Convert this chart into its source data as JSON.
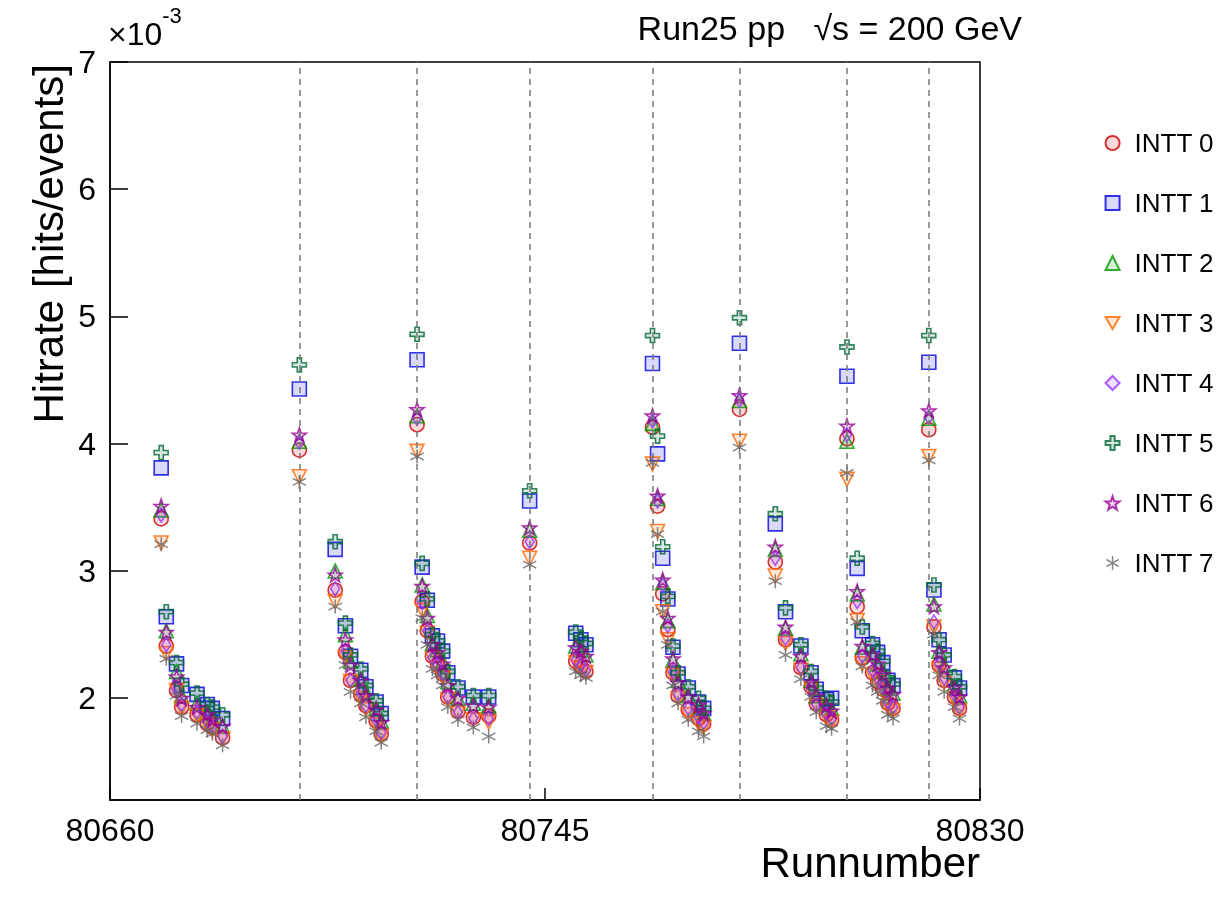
{
  "chart_data": {
    "type": "scatter",
    "title": "Run25 pp   √s = 200 GeV",
    "xlabel": "Runnumber",
    "ylabel": "Hitrate [hits/events]",
    "annotations": [
      "×10$^{-3}$"
    ],
    "x": [
      80670,
      80671,
      80673,
      80674,
      80677,
      80679,
      80680,
      80682,
      80697,
      80704,
      80706,
      80707,
      80709,
      80710,
      80712,
      80713,
      80720,
      80721,
      80722,
      80723,
      80724,
      80725,
      80726,
      80728,
      80731,
      80734,
      80742,
      80751,
      80752,
      80753,
      80766,
      80767,
      80768,
      80769,
      80770,
      80771,
      80773,
      80775,
      80776,
      80783,
      80790,
      80792,
      80795,
      80797,
      80798,
      80800,
      80801,
      80804,
      80806,
      80807,
      80809,
      80810,
      80811,
      80812,
      80813,
      80820,
      80821,
      80822,
      80823,
      80825,
      80826
    ],
    "series": [
      {
        "name": "INTT 0",
        "color": "#cc0000",
        "marker": "circle",
        "values": [
          3.41,
          2.41,
          2.06,
          1.93,
          1.87,
          1.8,
          1.77,
          1.69,
          3.95,
          2.85,
          2.36,
          2.14,
          2.03,
          1.94,
          1.82,
          1.72,
          4.15,
          2.76,
          2.53,
          2.33,
          2.26,
          2.19,
          2.01,
          1.9,
          1.85,
          1.86,
          3.22,
          2.29,
          2.25,
          2.21,
          4.13,
          3.51,
          2.82,
          2.54,
          2.2,
          2.02,
          1.91,
          1.84,
          1.8,
          4.27,
          3.07,
          2.46,
          2.24,
          2.09,
          1.96,
          1.87,
          1.83,
          4.04,
          2.72,
          2.32,
          2.2,
          2.13,
          2.07,
          1.96,
          1.92,
          4.11,
          2.56,
          2.26,
          2.14,
          2.01,
          1.92
        ]
      },
      {
        "name": "INTT 1",
        "color": "#0000dd",
        "marker": "square",
        "values": [
          3.81,
          2.64,
          2.27,
          2.1,
          2.03,
          1.95,
          1.92,
          1.84,
          4.43,
          3.17,
          2.57,
          2.33,
          2.22,
          2.09,
          1.97,
          1.88,
          4.66,
          3.03,
          2.77,
          2.49,
          2.45,
          2.37,
          2.2,
          2.08,
          2.01,
          2.01,
          3.55,
          2.51,
          2.46,
          2.42,
          4.63,
          3.92,
          3.1,
          2.78,
          2.4,
          2.19,
          2.08,
          1.97,
          1.92,
          4.79,
          3.37,
          2.68,
          2.41,
          2.2,
          2.07,
          1.99,
          2.0,
          4.53,
          3.02,
          2.53,
          2.42,
          2.36,
          2.28,
          2.14,
          2.1,
          4.64,
          2.85,
          2.46,
          2.34,
          2.16,
          2.08
        ]
      },
      {
        "name": "INTT 2",
        "color": "#009900",
        "marker": "triangle",
        "values": [
          3.48,
          2.53,
          2.21,
          2.02,
          1.96,
          1.89,
          1.85,
          1.78,
          4.02,
          3.0,
          2.5,
          2.29,
          2.15,
          2.05,
          1.92,
          1.82,
          4.22,
          2.89,
          2.65,
          2.43,
          2.38,
          2.29,
          2.13,
          2.0,
          1.96,
          1.94,
          3.32,
          2.41,
          2.38,
          2.34,
          4.16,
          3.57,
          2.91,
          2.61,
          2.3,
          2.14,
          2.02,
          1.93,
          1.88,
          4.34,
          3.17,
          2.55,
          2.35,
          2.14,
          2.02,
          1.95,
          1.92,
          4.02,
          2.82,
          2.4,
          2.35,
          2.27,
          2.21,
          2.08,
          2.04,
          4.2,
          2.74,
          2.37,
          2.26,
          2.1,
          2.02
        ]
      },
      {
        "name": "INTT 3",
        "color": "#ff6600",
        "marker": "triangle-down",
        "values": [
          3.22,
          2.35,
          2.06,
          1.92,
          1.86,
          1.79,
          1.75,
          1.68,
          3.74,
          2.76,
          2.32,
          2.13,
          2.0,
          1.91,
          1.79,
          1.7,
          3.94,
          2.69,
          2.51,
          2.31,
          2.24,
          2.16,
          1.99,
          1.88,
          1.83,
          1.81,
          3.1,
          2.28,
          2.24,
          2.2,
          3.84,
          3.31,
          2.68,
          2.46,
          2.18,
          2.0,
          1.87,
          1.8,
          1.77,
          4.02,
          2.96,
          2.43,
          2.22,
          2.07,
          1.94,
          1.85,
          1.81,
          3.72,
          2.61,
          2.27,
          2.18,
          2.13,
          2.06,
          1.94,
          1.9,
          3.9,
          2.56,
          2.23,
          2.12,
          1.99,
          1.9
        ]
      },
      {
        "name": "INTT 4",
        "color": "#9933ff",
        "marker": "diamond",
        "values": [
          3.44,
          2.42,
          2.07,
          1.95,
          1.89,
          1.82,
          1.78,
          1.7,
          4.01,
          2.86,
          2.37,
          2.14,
          2.04,
          1.94,
          1.83,
          1.73,
          4.2,
          2.75,
          2.53,
          2.32,
          2.26,
          2.19,
          2.01,
          1.89,
          1.84,
          1.84,
          3.23,
          2.3,
          2.26,
          2.22,
          4.18,
          3.55,
          2.89,
          2.57,
          2.21,
          2.03,
          1.92,
          1.85,
          1.81,
          4.34,
          3.1,
          2.47,
          2.24,
          2.09,
          1.95,
          1.88,
          1.84,
          4.07,
          2.76,
          2.33,
          2.22,
          2.16,
          2.09,
          1.97,
          1.93,
          4.21,
          2.6,
          2.27,
          2.16,
          2.03,
          1.93
        ]
      },
      {
        "name": "INTT 5",
        "color": "#006633",
        "marker": "cross",
        "values": [
          3.93,
          2.68,
          2.28,
          2.11,
          2.04,
          1.95,
          1.93,
          1.87,
          4.62,
          3.23,
          2.59,
          2.34,
          2.23,
          2.1,
          1.98,
          1.88,
          4.86,
          3.06,
          2.78,
          2.5,
          2.45,
          2.37,
          2.21,
          2.09,
          2.02,
          2.02,
          3.63,
          2.52,
          2.47,
          2.43,
          4.85,
          4.06,
          3.19,
          2.8,
          2.41,
          2.2,
          2.09,
          2.0,
          1.92,
          4.99,
          3.45,
          2.71,
          2.42,
          2.21,
          2.08,
          2.0,
          1.97,
          4.76,
          3.1,
          2.56,
          2.43,
          2.37,
          2.29,
          2.16,
          2.11,
          4.85,
          2.89,
          2.46,
          2.34,
          2.17,
          2.09
        ]
      },
      {
        "name": "INTT 6",
        "color": "#990099",
        "marker": "star",
        "values": [
          3.51,
          2.52,
          2.17,
          2.0,
          1.93,
          1.87,
          1.83,
          1.78,
          4.07,
          2.97,
          2.46,
          2.26,
          2.14,
          2.02,
          1.91,
          1.81,
          4.27,
          2.88,
          2.63,
          2.42,
          2.36,
          2.27,
          2.1,
          2.0,
          1.94,
          1.93,
          3.34,
          2.4,
          2.37,
          2.33,
          4.22,
          3.59,
          2.93,
          2.63,
          2.31,
          2.12,
          2.01,
          1.95,
          1.88,
          4.38,
          3.19,
          2.56,
          2.33,
          2.13,
          2.02,
          1.94,
          1.9,
          4.14,
          2.84,
          2.41,
          2.34,
          2.27,
          2.19,
          2.08,
          2.03,
          4.26,
          2.72,
          2.36,
          2.24,
          2.08,
          2.01
        ]
      },
      {
        "name": "INTT 7",
        "color": "#666666",
        "marker": "asterisk",
        "values": [
          3.21,
          2.31,
          2.02,
          1.86,
          1.8,
          1.75,
          1.72,
          1.63,
          3.7,
          2.72,
          2.26,
          2.05,
          1.96,
          1.85,
          1.74,
          1.65,
          3.9,
          2.63,
          2.42,
          2.23,
          2.18,
          2.1,
          1.93,
          1.83,
          1.77,
          1.7,
          3.05,
          2.21,
          2.18,
          2.16,
          3.85,
          3.29,
          2.68,
          2.42,
          2.1,
          1.96,
          1.83,
          1.74,
          1.7,
          3.97,
          2.92,
          2.34,
          2.15,
          2.01,
          1.89,
          1.78,
          1.76,
          3.77,
          2.6,
          2.25,
          2.1,
          2.05,
          1.98,
          1.87,
          1.84,
          3.87,
          2.5,
          2.18,
          2.05,
          1.93,
          1.84
        ]
      }
    ],
    "xlim": [
      80660,
      80830
    ],
    "xticks": [
      80660,
      80745,
      80830
    ],
    "ylim": [
      1.2,
      7
    ],
    "yticks": [
      2,
      3,
      4,
      5,
      6,
      7
    ],
    "ref_lines": [
      {
        "axis": "x",
        "value": 80697,
        "color": "#777777",
        "line_style": "dashed"
      },
      {
        "axis": "x",
        "value": 80720,
        "color": "#777777",
        "line_style": "dashed"
      },
      {
        "axis": "x",
        "value": 80742,
        "color": "#777777",
        "line_style": "dashed"
      },
      {
        "axis": "x",
        "value": 80766,
        "color": "#777777",
        "line_style": "dashed"
      },
      {
        "axis": "x",
        "value": 80783,
        "color": "#777777",
        "line_style": "dashed"
      },
      {
        "axis": "x",
        "value": 80804,
        "color": "#777777",
        "line_style": "dashed"
      },
      {
        "axis": "x",
        "value": 80820,
        "color": "#777777",
        "line_style": "dashed"
      }
    ],
    "legend": "right"
  }
}
